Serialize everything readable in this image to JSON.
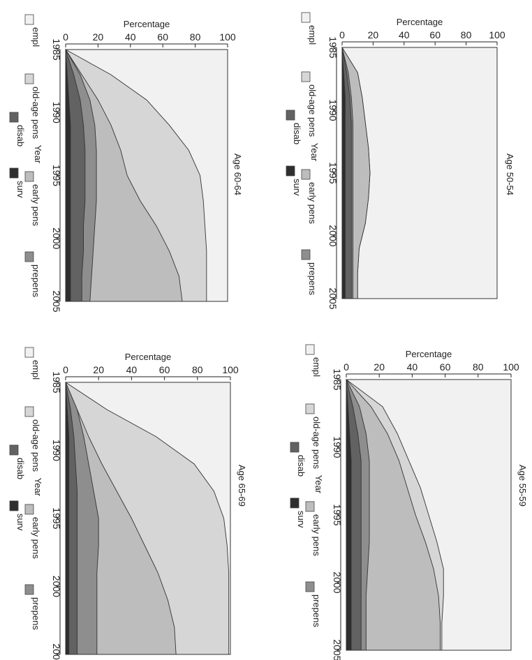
{
  "palette": {
    "prepens": "#8e8e8e",
    "disab": "#626262",
    "surv": "#2e2e2e",
    "early": "#bdbdbd",
    "oldage": "#d6d6d6",
    "empl": "#f1f1f1",
    "line": "#333333"
  },
  "chart_data": [
    {
      "type": "area",
      "title": "Age 60-64",
      "xlabel": "Year",
      "ylabel": "Percentage",
      "xlim": [
        1985,
        2005
      ],
      "ylim": [
        0,
        100
      ],
      "xticks": [
        "1985",
        "1990",
        "1995",
        "2000",
        "2005"
      ],
      "yticks": [
        "0",
        "20",
        "40",
        "60",
        "80",
        "100"
      ],
      "legend": [
        "empl",
        "old-age pens",
        "early pens",
        "prepens",
        "disab",
        "surv"
      ],
      "years": [
        1985,
        1987,
        1989,
        1991,
        1993,
        1995,
        1997,
        1999,
        2001,
        2003,
        2005
      ],
      "cumulative": {
        "surv": [
          0,
          1,
          2,
          3,
          3,
          3,
          3,
          3,
          3,
          3,
          3
        ],
        "disab": [
          0,
          5,
          9,
          11,
          12,
          12,
          12,
          11,
          11,
          10,
          10
        ],
        "prepens": [
          0,
          9,
          15,
          18,
          19,
          19,
          19,
          18,
          17,
          16,
          15
        ],
        "early": [
          0,
          10,
          20,
          28,
          34,
          38,
          46,
          56,
          64,
          70,
          72
        ],
        "oldage": [
          0,
          28,
          50,
          64,
          76,
          83,
          85,
          86,
          87,
          87,
          87
        ],
        "empl": [
          100,
          100,
          100,
          100,
          100,
          100,
          100,
          100,
          100,
          100,
          100
        ]
      }
    },
    {
      "type": "area",
      "title": "Age 50-54",
      "xlabel": "Year",
      "ylabel": "Percentage",
      "xlim": [
        1985,
        2005
      ],
      "ylim": [
        0,
        100
      ],
      "xticks": [
        "1985",
        "1990",
        "1995",
        "2000",
        "2005"
      ],
      "yticks": [
        "0",
        "20",
        "40",
        "60",
        "80",
        "100"
      ],
      "legend": [
        "empl",
        "old-age pens",
        "early pens",
        "prepens",
        "disab",
        "surv"
      ],
      "years": [
        1985,
        1987,
        1989,
        1991,
        1993,
        1995,
        1997,
        1999,
        2001,
        2003,
        2005
      ],
      "cumulative": {
        "surv": [
          0,
          1,
          2,
          2,
          2,
          2,
          2,
          2,
          2,
          2,
          2
        ],
        "disab": [
          0,
          3,
          5,
          6,
          6,
          6,
          6,
          6,
          6,
          6,
          6
        ],
        "prepens": [
          0,
          4,
          6,
          7,
          7,
          7,
          7,
          7,
          7,
          7,
          7
        ],
        "early": [
          0,
          10,
          13,
          15,
          17,
          18,
          17,
          15,
          11,
          10,
          10
        ],
        "oldage": [
          0,
          10,
          13,
          15,
          17,
          18,
          17,
          15,
          11,
          10,
          10
        ],
        "empl": [
          100,
          100,
          100,
          100,
          100,
          100,
          100,
          100,
          100,
          100,
          100
        ]
      }
    },
    {
      "type": "area",
      "title": "Age 65-69",
      "xlabel": "Year",
      "ylabel": "Percentage",
      "xlim": [
        1985,
        2005
      ],
      "ylim": [
        0,
        100
      ],
      "xticks": [
        "1985",
        "1990",
        "1995",
        "2000",
        "2005"
      ],
      "yticks": [
        "0",
        "20",
        "40",
        "60",
        "80",
        "100"
      ],
      "legend": [
        "empl",
        "old-age pens",
        "early pens",
        "prepens",
        "disab",
        "surv"
      ],
      "years": [
        1985,
        1987,
        1989,
        1991,
        1993,
        1995,
        1997,
        1999,
        2001,
        2003,
        2005
      ],
      "cumulative": {
        "surv": [
          0,
          1,
          2,
          2,
          2,
          2,
          2,
          2,
          2,
          2,
          2
        ],
        "disab": [
          0,
          3,
          5,
          6,
          7,
          7,
          7,
          7,
          7,
          7,
          7
        ],
        "prepens": [
          0,
          7,
          11,
          14,
          17,
          20,
          20,
          19,
          19,
          19,
          19
        ],
        "early": [
          0,
          7,
          14,
          22,
          31,
          40,
          48,
          56,
          62,
          66,
          67
        ],
        "oldage": [
          0,
          25,
          55,
          78,
          90,
          96,
          98,
          99,
          99,
          99,
          99
        ],
        "empl": [
          100,
          100,
          100,
          100,
          100,
          100,
          100,
          100,
          100,
          100,
          100
        ]
      }
    },
    {
      "type": "area",
      "title": "Age 55-59",
      "xlabel": "Year",
      "ylabel": "Percentage",
      "xlim": [
        1985,
        2005
      ],
      "ylim": [
        0,
        100
      ],
      "xticks": [
        "1985",
        "1990",
        "1995",
        "2000",
        "2005"
      ],
      "yticks": [
        "0",
        "20",
        "40",
        "60",
        "80",
        "100"
      ],
      "legend": [
        "empl",
        "old-age pens",
        "early pens",
        "prepens",
        "disab",
        "surv"
      ],
      "years": [
        1985,
        1987,
        1989,
        1991,
        1993,
        1995,
        1997,
        1999,
        2001,
        2003,
        2005
      ],
      "cumulative": {
        "surv": [
          0,
          1,
          2,
          3,
          3,
          3,
          3,
          3,
          3,
          3,
          3
        ],
        "disab": [
          0,
          4,
          7,
          9,
          9,
          9,
          9,
          9,
          9,
          9,
          9
        ],
        "prepens": [
          0,
          8,
          12,
          14,
          14,
          14,
          14,
          13,
          12,
          12,
          12
        ],
        "early": [
          0,
          15,
          25,
          32,
          37,
          42,
          48,
          53,
          56,
          57,
          57
        ],
        "oldage": [
          0,
          22,
          31,
          38,
          45,
          50,
          55,
          59,
          59,
          58,
          58
        ],
        "empl": [
          100,
          100,
          100,
          100,
          100,
          100,
          100,
          100,
          100,
          100,
          100
        ]
      }
    }
  ]
}
